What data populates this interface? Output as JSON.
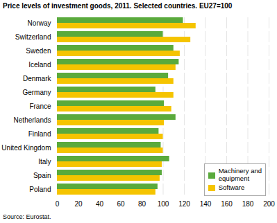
{
  "chart_data": {
    "type": "bar",
    "orientation": "horizontal",
    "title": "Price levels of investment goods, 2011. Selected countries. EU27=100",
    "source": "Source: Eurostat.",
    "categories": [
      "Norway",
      "Switzerland",
      "Sweden",
      "Iceland",
      "Denmark",
      "Germany",
      "France",
      "Netherlands",
      "Finland",
      "United Kingdom",
      "Italy",
      "Spain",
      "Poland"
    ],
    "series": [
      {
        "name": "Machinery and\nequipment",
        "color": "#5aaa3c",
        "values": [
          119,
          100,
          110,
          115,
          105,
          93,
          101,
          112,
          96,
          98,
          106,
          99,
          95
        ]
      },
      {
        "name": "Software",
        "color": "#f5c400",
        "values": [
          131,
          126,
          116,
          112,
          110,
          110,
          108,
          101,
          100,
          100,
          99,
          97,
          93
        ]
      }
    ],
    "xlim": [
      0,
      200
    ],
    "xticks": [
      0,
      20,
      40,
      60,
      80,
      100,
      120,
      140,
      160,
      180,
      200
    ],
    "grid": true,
    "legend": "lower right"
  }
}
